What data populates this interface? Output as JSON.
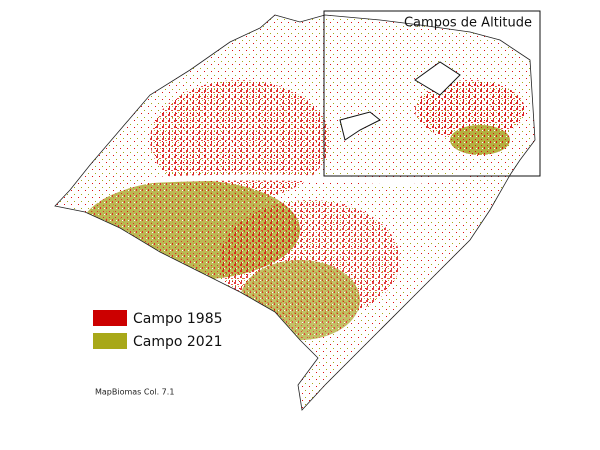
{
  "inset": {
    "title": "Campos de Altitude"
  },
  "legend": {
    "items": [
      {
        "label": "Campo 1985",
        "color": "#cc0000"
      },
      {
        "label": "Campo 2021",
        "color": "#a8a818"
      }
    ]
  },
  "source": "MapBiomas Col. 7.1"
}
